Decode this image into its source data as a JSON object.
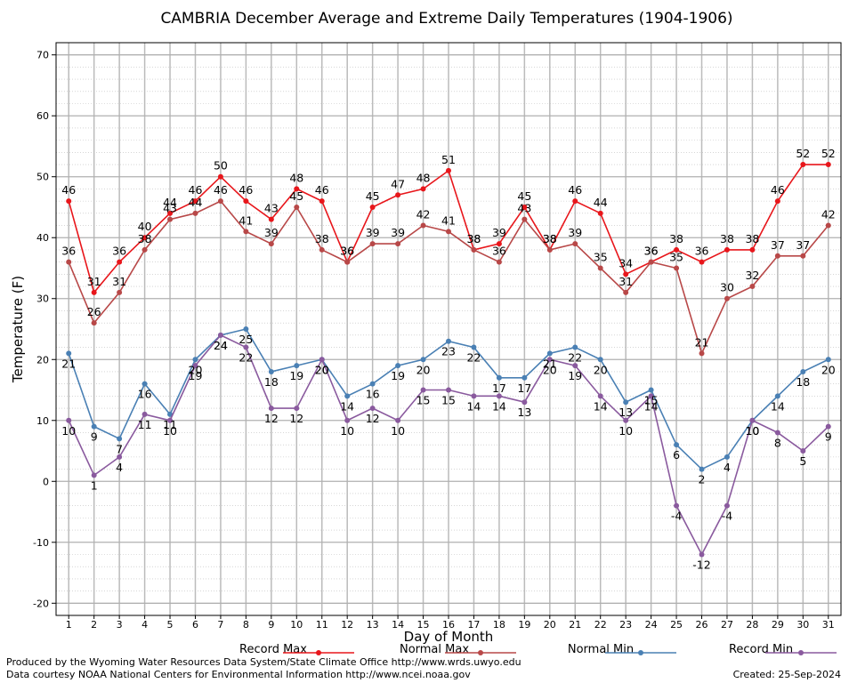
{
  "chart_data": {
    "type": "line",
    "title": "CAMBRIA December Average and Extreme Daily Temperatures (1904-1906)",
    "xlabel": "Day of Month",
    "ylabel": "Temperature (F)",
    "ylim": [
      -22,
      72
    ],
    "y_ticks": [
      70,
      60,
      50,
      40,
      30,
      20,
      10,
      0,
      -10,
      -20
    ],
    "x": [
      1,
      2,
      3,
      4,
      5,
      6,
      7,
      8,
      9,
      10,
      11,
      12,
      13,
      14,
      15,
      16,
      17,
      18,
      19,
      20,
      21,
      22,
      23,
      24,
      25,
      26,
      27,
      28,
      29,
      30,
      31
    ],
    "grid": true,
    "legend_position": "bottom",
    "series": [
      {
        "name": "Record Max",
        "color": "#e8161b",
        "values": [
          46,
          31,
          36,
          40,
          44,
          46,
          50,
          46,
          43,
          48,
          46,
          36,
          45,
          47,
          48,
          51,
          38,
          39,
          45,
          38,
          46,
          44,
          34,
          36,
          38,
          36,
          38,
          38,
          46,
          52,
          52
        ]
      },
      {
        "name": "Normal Max",
        "color": "#b84848",
        "values": [
          36,
          26,
          31,
          38,
          43,
          44,
          46,
          41,
          39,
          45,
          38,
          36,
          39,
          39,
          42,
          41,
          38,
          36,
          43,
          38,
          39,
          35,
          31,
          36,
          35,
          21,
          30,
          32,
          37,
          37,
          42
        ]
      },
      {
        "name": "Normal Min",
        "color": "#4a80b4",
        "values": [
          21,
          9,
          7,
          16,
          11,
          20,
          24,
          25,
          18,
          19,
          20,
          14,
          16,
          19,
          20,
          23,
          22,
          17,
          17,
          21,
          22,
          20,
          13,
          15,
          6,
          2,
          4,
          10,
          14,
          18,
          20
        ]
      },
      {
        "name": "Record Min",
        "color": "#8a5a9e",
        "values": [
          10,
          1,
          4,
          11,
          10,
          19,
          24,
          22,
          12,
          12,
          20,
          10,
          12,
          10,
          15,
          15,
          14,
          14,
          13,
          20,
          19,
          14,
          10,
          14,
          -4,
          -12,
          -4,
          10,
          8,
          5,
          9
        ]
      }
    ]
  },
  "footer": {
    "left_line1": "Produced by the Wyoming Water Resources Data System/State Climate Office http://www.wrds.uwyo.edu",
    "left_line2": "Data courtesy NOAA National Centers for Environmental Information http://www.ncei.noaa.gov",
    "created": "Created:  25-Sep-2024"
  }
}
